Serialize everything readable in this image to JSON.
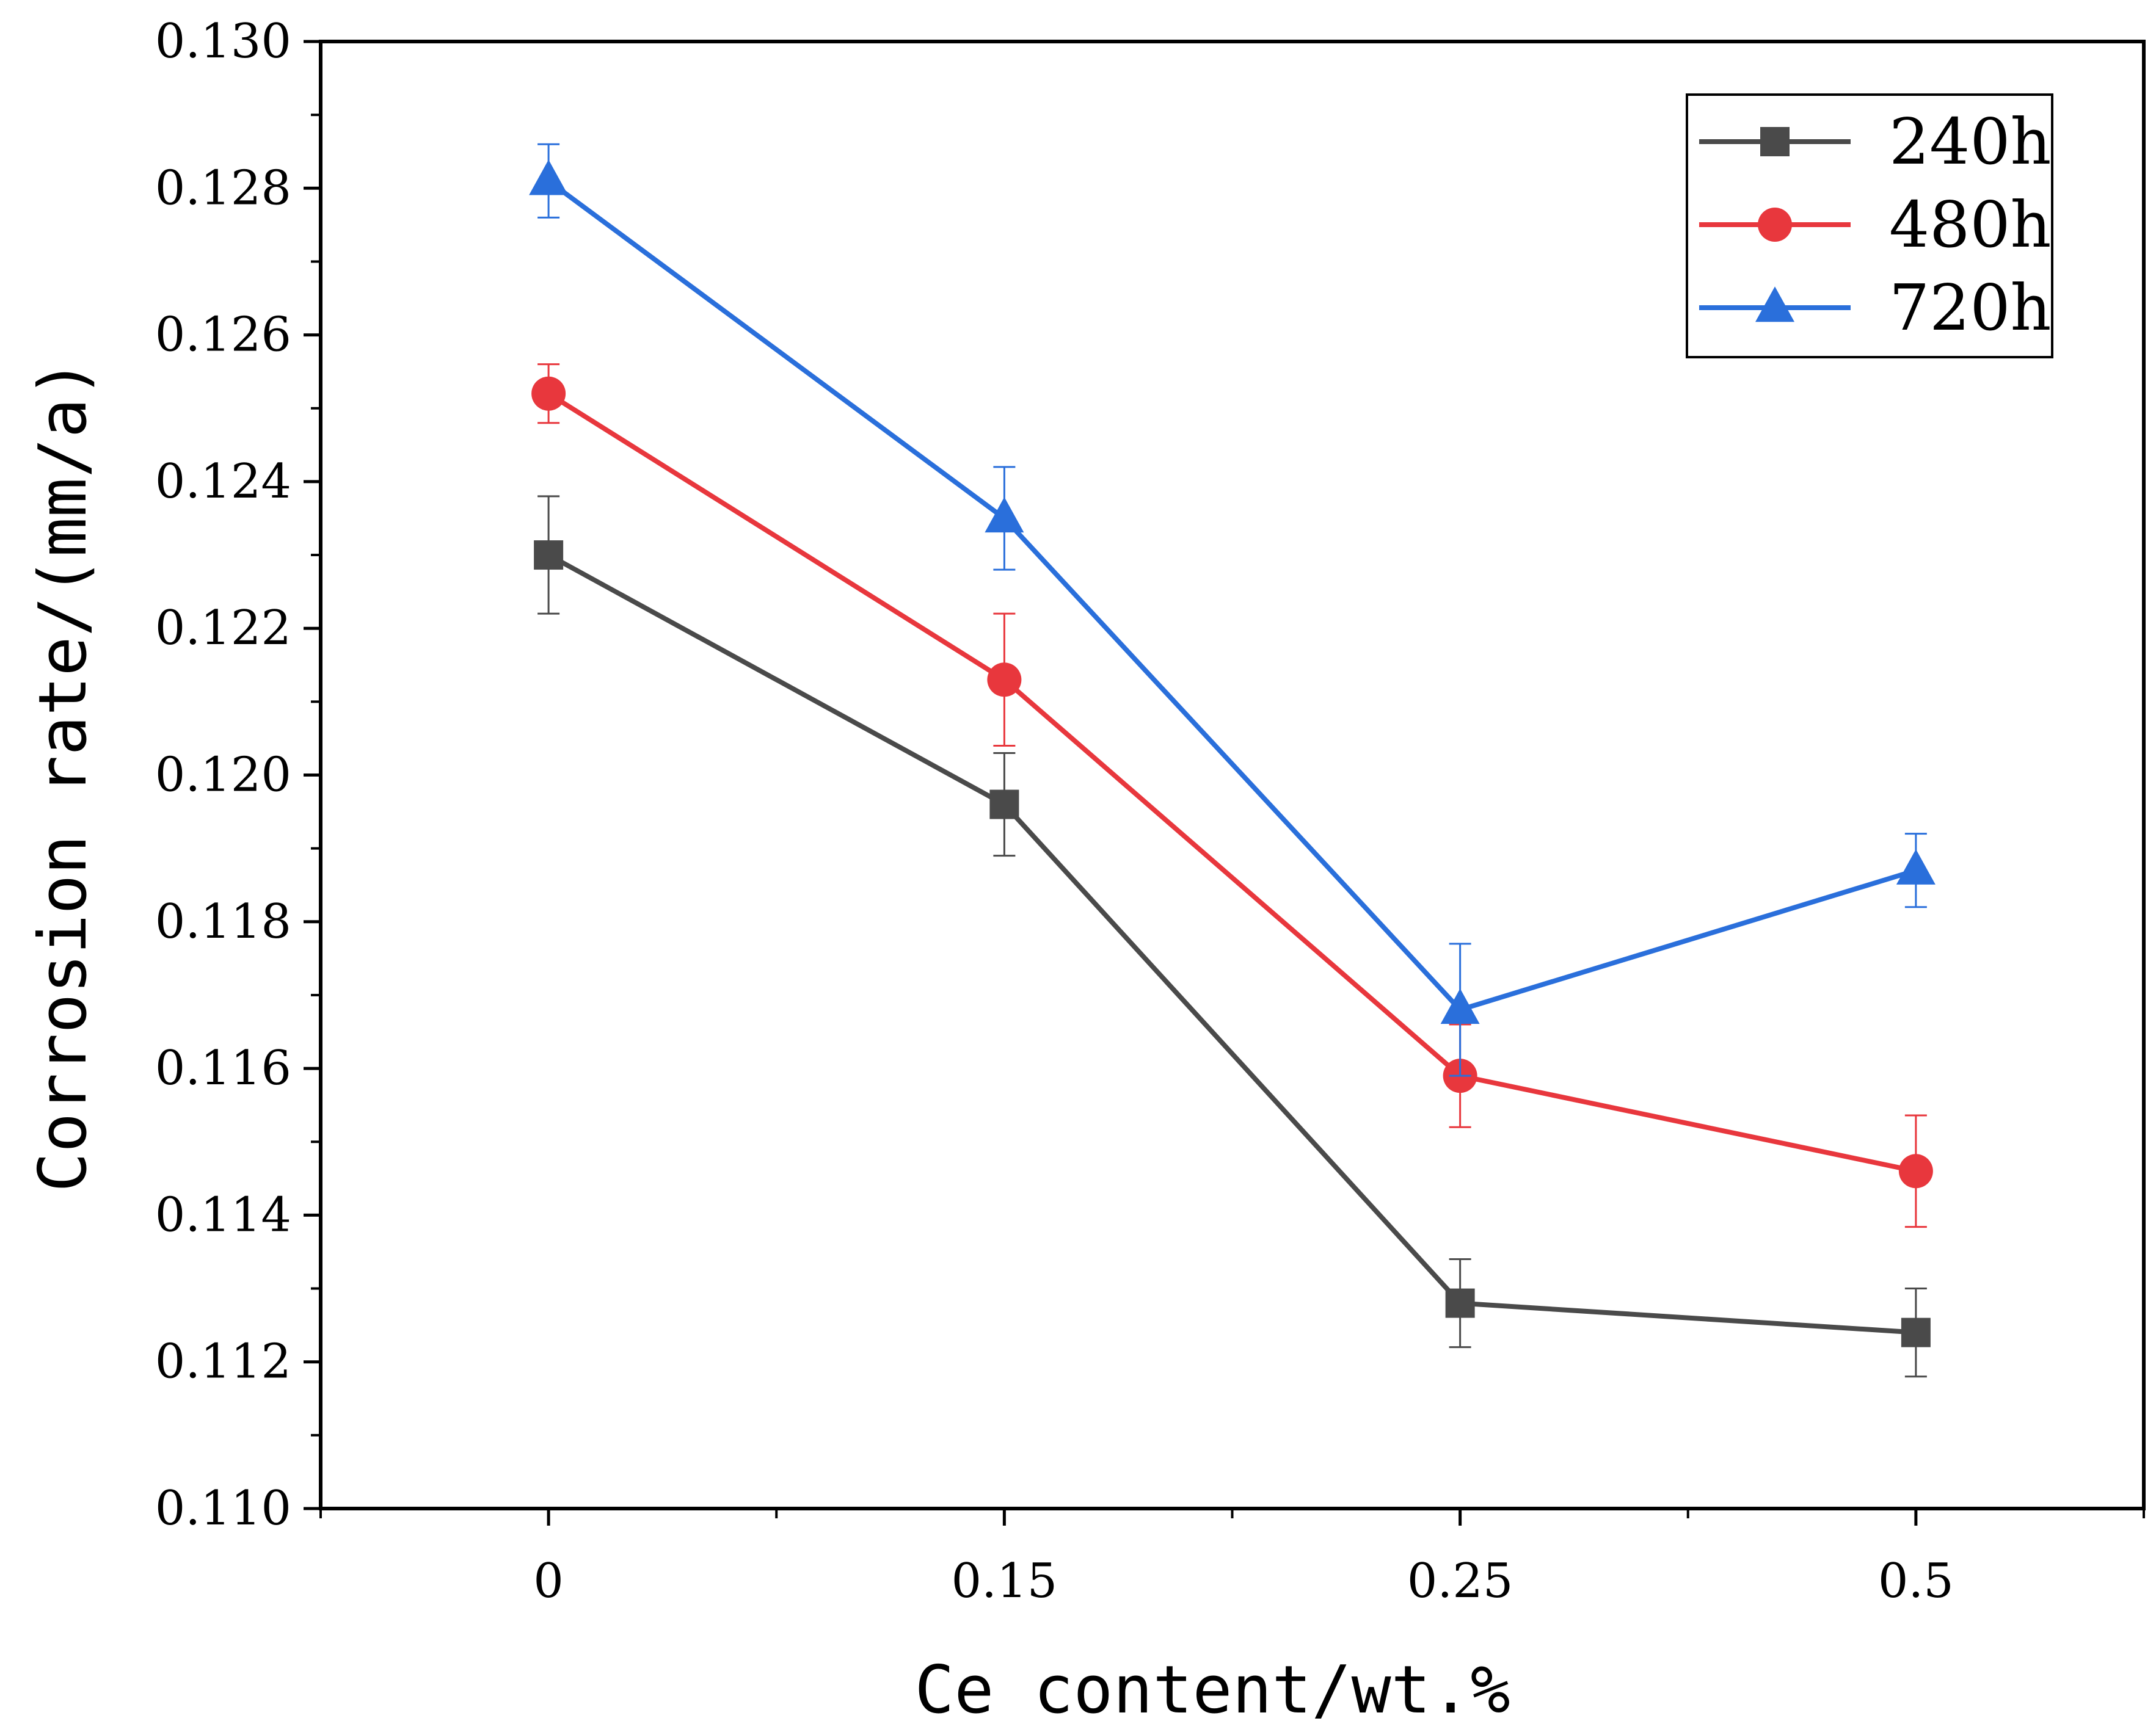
{
  "chart_data": {
    "type": "line",
    "title": "",
    "xlabel": "Ce content/wt.%",
    "ylabel": "Corrosion rate/(mm/a)",
    "categories": [
      "0",
      "0.15",
      "0.25",
      "0.5"
    ],
    "ylim": [
      0.11,
      0.13
    ],
    "yticks": [
      "0.110",
      "0.112",
      "0.114",
      "0.116",
      "0.118",
      "0.120",
      "0.122",
      "0.124",
      "0.126",
      "0.128",
      "0.130"
    ],
    "legend_position": "top-right",
    "series": [
      {
        "name": "240h",
        "color": "#4a4a4a",
        "marker": "square",
        "values": [
          0.123,
          0.1196,
          0.1128,
          0.1124
        ],
        "error": [
          0.0008,
          0.0007,
          0.0006,
          0.0006
        ]
      },
      {
        "name": "480h",
        "color": "#e8373d",
        "marker": "circle",
        "values": [
          0.1252,
          0.1213,
          0.1159,
          0.1146
        ],
        "error": [
          0.0004,
          0.0009,
          0.0007,
          0.00076
        ]
      },
      {
        "name": "720h",
        "color": "#2a6fdb",
        "marker": "triangle",
        "values": [
          0.1281,
          0.1235,
          0.1168,
          0.1187
        ],
        "error": [
          0.0005,
          0.0007,
          0.0009,
          0.0005
        ]
      }
    ]
  }
}
